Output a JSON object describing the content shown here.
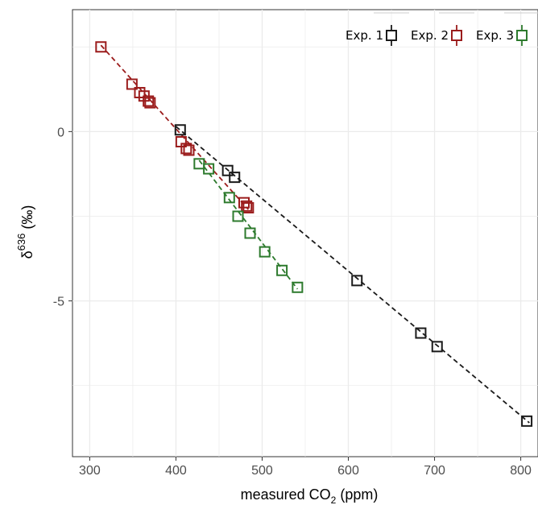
{
  "chart_data": {
    "type": "scatter",
    "title": "",
    "xlabel": {
      "pre": "measured CO",
      "sub": "2",
      "post": " (ppm)"
    },
    "ylabel": {
      "base": "δ",
      "sup": "636",
      "post": " (‰)"
    },
    "xlim": [
      280,
      820
    ],
    "ylim": [
      -9.6,
      3.6
    ],
    "xticks": [
      300,
      400,
      500,
      600,
      700,
      800
    ],
    "xtick_labels": [
      "300",
      "400",
      "500",
      "600",
      "700",
      "800"
    ],
    "yticks": [
      0,
      -5
    ],
    "ytick_labels": [
      "0",
      "-5"
    ],
    "grid": true,
    "legend_position": "top-right",
    "series": [
      {
        "name": "Exp. 1",
        "color": "#1a1a1a",
        "x": [
          405,
          460,
          468,
          610,
          684,
          703,
          807
        ],
        "y": [
          0.05,
          -1.15,
          -1.35,
          -4.4,
          -5.95,
          -6.35,
          -8.55
        ],
        "fit": {
          "x": [
            400,
            810
          ],
          "y": [
            0.15,
            -8.6
          ]
        }
      },
      {
        "name": "Exp. 2",
        "color": "#9b1c1c",
        "x": [
          313,
          349,
          358,
          363,
          368,
          370,
          406,
          412,
          415,
          479,
          482,
          484
        ],
        "y": [
          2.5,
          1.4,
          1.15,
          1.05,
          0.9,
          0.85,
          -0.3,
          -0.5,
          -0.55,
          -2.1,
          -2.2,
          -2.25
        ],
        "fit": {
          "x": [
            313,
            484
          ],
          "y": [
            2.55,
            -2.3
          ]
        }
      },
      {
        "name": "Exp. 3",
        "color": "#2d7a2d",
        "x": [
          427,
          438,
          462,
          472,
          486,
          503,
          523,
          541
        ],
        "y": [
          -0.95,
          -1.1,
          -1.95,
          -2.5,
          -3.0,
          -3.55,
          -4.1,
          -4.6
        ],
        "fit": {
          "x": [
            427,
            541
          ],
          "y": [
            -0.85,
            -4.65
          ]
        }
      }
    ]
  }
}
